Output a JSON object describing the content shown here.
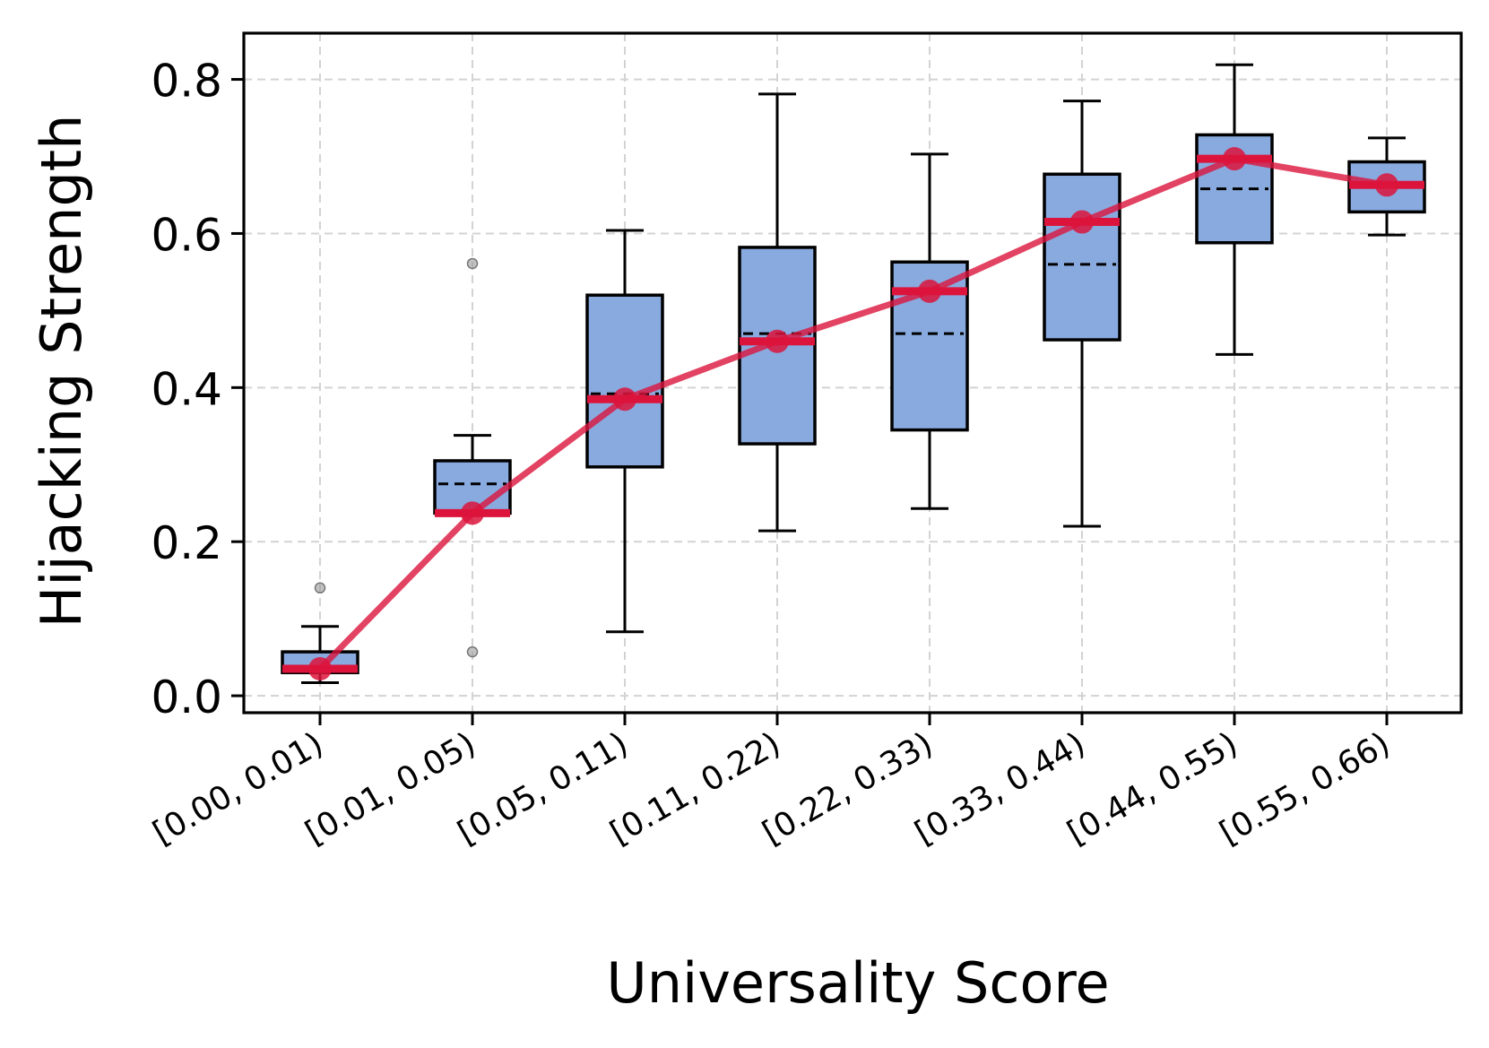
{
  "chart_data": {
    "type": "box",
    "xlabel": "Universality Score",
    "ylabel": "Hijacking Strength",
    "ylim": [
      -0.022,
      0.86
    ],
    "yticks": [
      0.0,
      0.2,
      0.4,
      0.6,
      0.8
    ],
    "ytick_labels": [
      "0.0",
      "0.2",
      "0.4",
      "0.6",
      "0.8"
    ],
    "grid": true,
    "colors": {
      "box_fill": "#88aadf",
      "box_edge": "#000000",
      "mean_line": "#dc143c",
      "grid": "#d3d3d3",
      "outlier": "#999999"
    },
    "categories": [
      "[0.00, 0.01)",
      "[0.01, 0.05)",
      "[0.05, 0.11)",
      "[0.11, 0.22)",
      "[0.22, 0.33)",
      "[0.33, 0.44)",
      "[0.44, 0.55)",
      "[0.55, 0.66)"
    ],
    "boxes": [
      {
        "whisker_low": 0.017,
        "q1": 0.03,
        "median": 0.037,
        "q3": 0.057,
        "whisker_high": 0.09,
        "outliers": [
          0.14
        ]
      },
      {
        "whisker_low": 0.237,
        "q1": 0.237,
        "median": 0.275,
        "q3": 0.305,
        "whisker_high": 0.338,
        "outliers": [
          0.057,
          0.561
        ]
      },
      {
        "whisker_low": 0.083,
        "q1": 0.297,
        "median": 0.392,
        "q3": 0.52,
        "whisker_high": 0.604,
        "outliers": []
      },
      {
        "whisker_low": 0.214,
        "q1": 0.327,
        "median": 0.47,
        "q3": 0.582,
        "whisker_high": 0.781,
        "outliers": []
      },
      {
        "whisker_low": 0.243,
        "q1": 0.345,
        "median": 0.47,
        "q3": 0.563,
        "whisker_high": 0.703,
        "outliers": []
      },
      {
        "whisker_low": 0.22,
        "q1": 0.462,
        "median": 0.56,
        "q3": 0.677,
        "whisker_high": 0.772,
        "outliers": []
      },
      {
        "whisker_low": 0.443,
        "q1": 0.588,
        "median": 0.658,
        "q3": 0.728,
        "whisker_high": 0.819,
        "outliers": []
      },
      {
        "whisker_low": 0.598,
        "q1": 0.628,
        "median": 0.663,
        "q3": 0.693,
        "whisker_high": 0.724,
        "outliers": []
      }
    ],
    "mean_series": {
      "values": [
        0.035,
        0.237,
        0.385,
        0.46,
        0.525,
        0.615,
        0.697,
        0.663
      ]
    }
  }
}
